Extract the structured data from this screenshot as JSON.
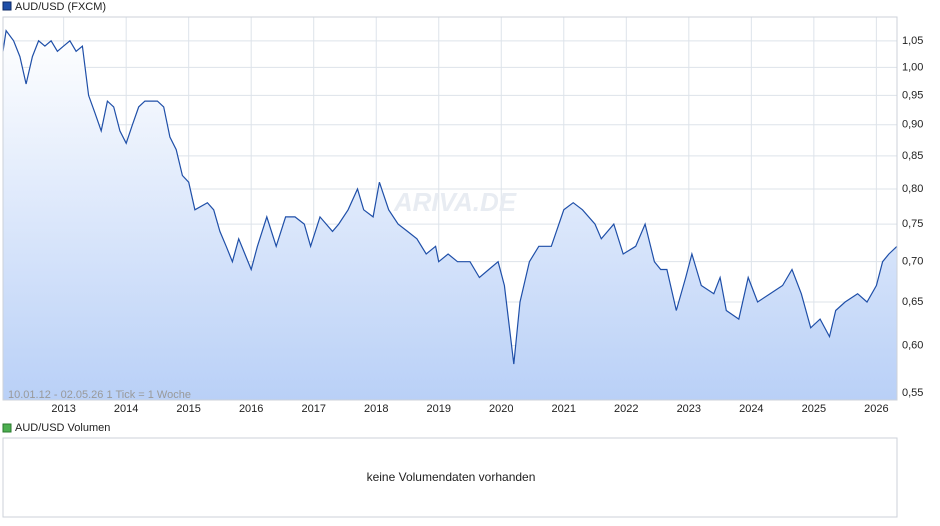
{
  "chart_data": {
    "type": "line",
    "title": "AUD/USD (FXCM)",
    "color": "#1f4fa8",
    "log_scale": true,
    "grid": true,
    "subtitle": "10.01.12 - 02.05.26   1 Tick = 1 Woche",
    "watermark": "ARIVA.DE",
    "volume_title": "AUD/USD Volumen",
    "volume_note": "keine Volumendaten vorhanden",
    "volume_color": "#4caf50",
    "xlim": [
      2012.03,
      2026.33
    ],
    "xticks": [
      2013,
      2014,
      2015,
      2016,
      2017,
      2018,
      2019,
      2020,
      2021,
      2022,
      2023,
      2024,
      2025,
      2026
    ],
    "ylim": [
      0.543,
      1.097
    ],
    "yticks": [
      {
        "value": 0.55,
        "label": "0,55"
      },
      {
        "value": 0.6,
        "label": "0,60"
      },
      {
        "value": 0.65,
        "label": "0,65"
      },
      {
        "value": 0.7,
        "label": "0,70"
      },
      {
        "value": 0.75,
        "label": "0,75"
      },
      {
        "value": 0.8,
        "label": "0,80"
      },
      {
        "value": 0.85,
        "label": "0,85"
      },
      {
        "value": 0.9,
        "label": "0,90"
      },
      {
        "value": 0.95,
        "label": "0,95"
      },
      {
        "value": 1.0,
        "label": "1,00"
      },
      {
        "value": 1.05,
        "label": "1,05"
      }
    ],
    "x": [
      2012.03,
      2012.08,
      2012.2,
      2012.3,
      2012.4,
      2012.5,
      2012.6,
      2012.7,
      2012.8,
      2012.9,
      2013.0,
      2013.1,
      2013.2,
      2013.3,
      2013.4,
      2013.5,
      2013.6,
      2013.7,
      2013.8,
      2013.9,
      2014.0,
      2014.1,
      2014.2,
      2014.3,
      2014.5,
      2014.6,
      2014.7,
      2014.8,
      2014.9,
      2015.0,
      2015.1,
      2015.3,
      2015.4,
      2015.5,
      2015.6,
      2015.7,
      2015.8,
      2015.9,
      2016.0,
      2016.1,
      2016.25,
      2016.4,
      2016.55,
      2016.7,
      2016.85,
      2016.95,
      2017.1,
      2017.3,
      2017.4,
      2017.55,
      2017.7,
      2017.8,
      2017.95,
      2018.05,
      2018.2,
      2018.35,
      2018.5,
      2018.65,
      2018.8,
      2018.95,
      2019.0,
      2019.15,
      2019.3,
      2019.5,
      2019.65,
      2019.8,
      2019.95,
      2020.05,
      2020.2,
      2020.3,
      2020.45,
      2020.6,
      2020.8,
      2021.0,
      2021.15,
      2021.3,
      2021.5,
      2021.6,
      2021.8,
      2021.95,
      2022.15,
      2022.3,
      2022.45,
      2022.55,
      2022.65,
      2022.8,
      2022.95,
      2023.05,
      2023.2,
      2023.4,
      2023.5,
      2023.6,
      2023.8,
      2023.95,
      2024.1,
      2024.3,
      2024.5,
      2024.65,
      2024.8,
      2024.95,
      2025.1,
      2025.25,
      2025.35,
      2025.5,
      2025.7,
      2025.85,
      2026.0,
      2026.1,
      2026.2,
      2026.33
    ],
    "values": [
      1.03,
      1.07,
      1.05,
      1.02,
      0.97,
      1.02,
      1.05,
      1.04,
      1.05,
      1.03,
      1.04,
      1.05,
      1.03,
      1.04,
      0.95,
      0.92,
      0.89,
      0.94,
      0.93,
      0.89,
      0.87,
      0.9,
      0.93,
      0.94,
      0.94,
      0.93,
      0.88,
      0.86,
      0.82,
      0.81,
      0.77,
      0.78,
      0.77,
      0.74,
      0.72,
      0.7,
      0.73,
      0.71,
      0.69,
      0.72,
      0.76,
      0.72,
      0.76,
      0.76,
      0.75,
      0.72,
      0.76,
      0.74,
      0.75,
      0.77,
      0.8,
      0.77,
      0.76,
      0.81,
      0.77,
      0.75,
      0.74,
      0.73,
      0.71,
      0.72,
      0.7,
      0.71,
      0.7,
      0.7,
      0.68,
      0.69,
      0.7,
      0.67,
      0.58,
      0.65,
      0.7,
      0.72,
      0.72,
      0.77,
      0.78,
      0.77,
      0.75,
      0.73,
      0.75,
      0.71,
      0.72,
      0.75,
      0.7,
      0.69,
      0.69,
      0.64,
      0.68,
      0.71,
      0.67,
      0.66,
      0.68,
      0.64,
      0.63,
      0.68,
      0.65,
      0.66,
      0.67,
      0.69,
      0.66,
      0.62,
      0.63,
      0.61,
      0.64,
      0.65,
      0.66,
      0.65,
      0.67,
      0.7,
      0.71,
      0.72
    ]
  }
}
